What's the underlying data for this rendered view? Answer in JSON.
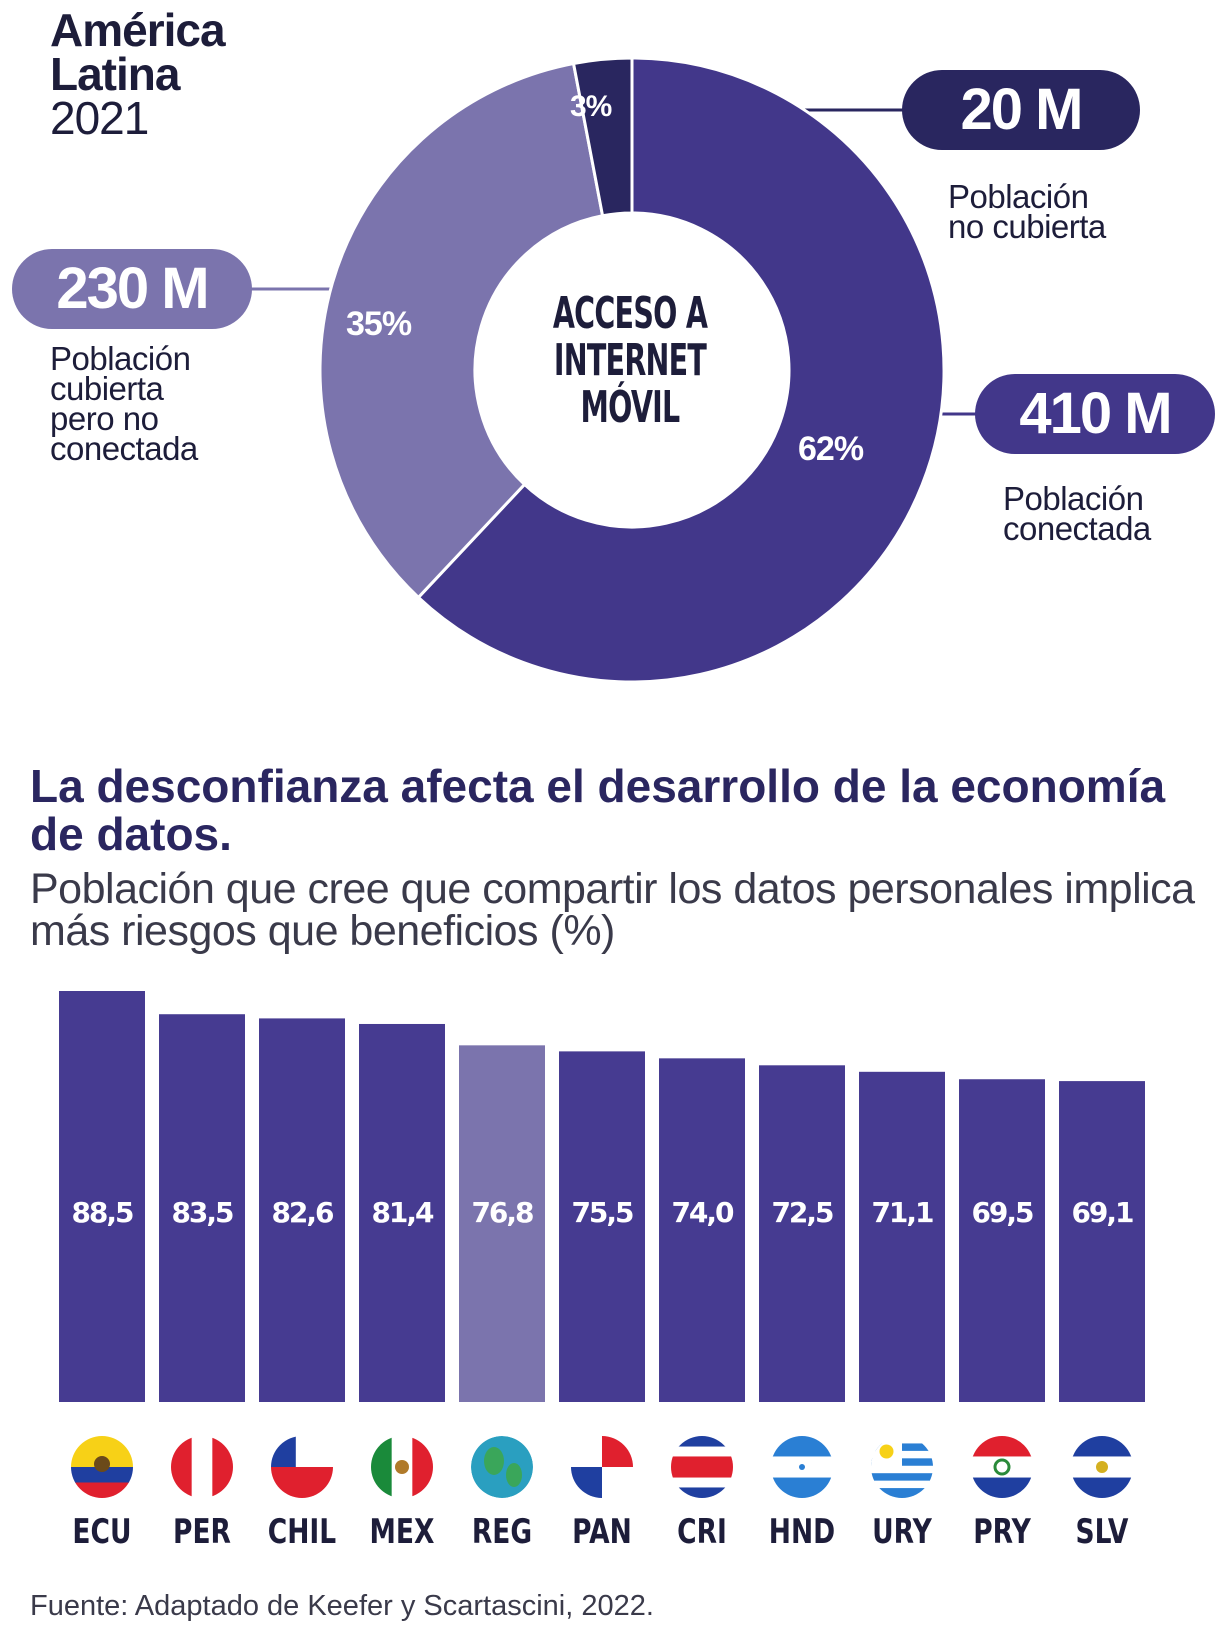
{
  "chart_data": [
    {
      "type": "pie",
      "title": [
        "América",
        "Latina",
        "2021"
      ],
      "center_label": "ACCESO A\nINTERNET\nMÓVIL",
      "slices": [
        {
          "label": "Población conectada",
          "value": 62,
          "pct_label": "62%",
          "amount": "410 M",
          "color": "#42378a"
        },
        {
          "label": "Población cubierta pero no conectada",
          "value": 35,
          "pct_label": "35%",
          "amount": "230 M",
          "color": "#7b74ad"
        },
        {
          "label": "Población no cubierta",
          "value": 3,
          "pct_label": "3%",
          "amount": "20 M",
          "color": "#29265f"
        }
      ]
    },
    {
      "type": "bar",
      "title": "La desconfianza afecta el desarrollo de la economía de datos.",
      "subtitle": "Población que cree que compartir los datos personales implica más riesgos que beneficios (%)",
      "categories": [
        "ECU",
        "PER",
        "CHIL",
        "MEX",
        "REG",
        "PAN",
        "CRI",
        "HND",
        "URY",
        "PRY",
        "SLV"
      ],
      "values": [
        88.5,
        83.5,
        82.6,
        81.4,
        76.8,
        75.5,
        74.0,
        72.5,
        71.1,
        69.5,
        69.1
      ],
      "value_labels": [
        "88,5",
        "83,5",
        "82,6",
        "81,4",
        "76,8",
        "75,5",
        "74,0",
        "72,5",
        "71,1",
        "69,5",
        "69,1"
      ],
      "highlight": "REG",
      "colors": {
        "bar": "#463b91",
        "highlight": "#7b74ad"
      },
      "ylim": [
        0,
        88.5
      ],
      "grid": false
    }
  ],
  "labels": {
    "connected": "Población\nconectada",
    "covered_not_connected": "Población\ncubierta\npero no\nconectada",
    "not_covered": "Población\nno cubierta"
  },
  "source": "Fuente: Adaptado de Keefer y Scartascini, 2022."
}
